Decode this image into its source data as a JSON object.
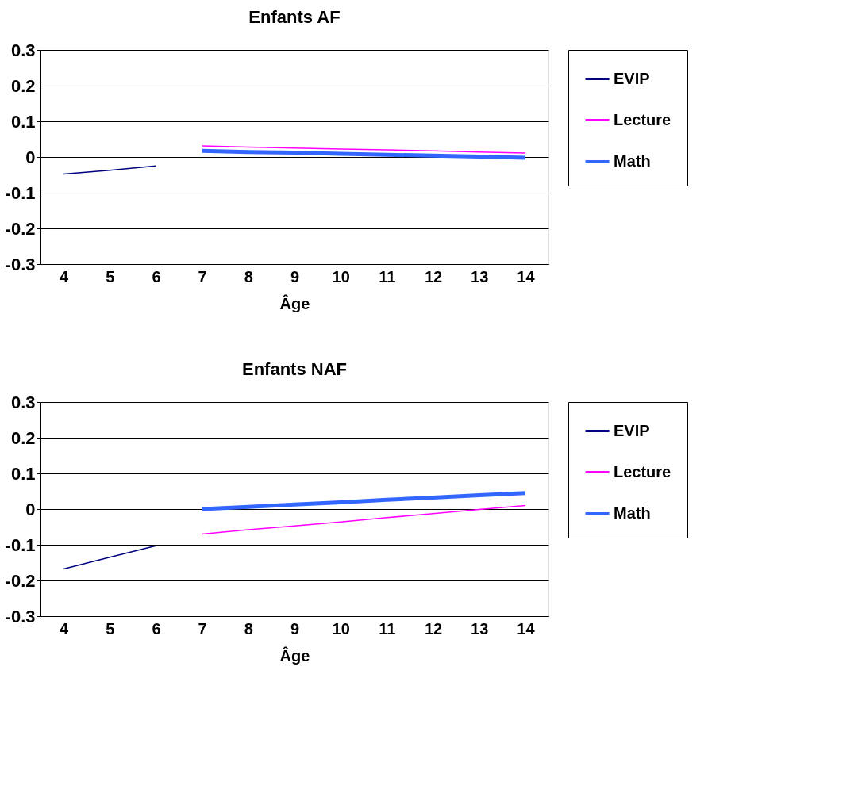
{
  "chart_data": [
    {
      "type": "line",
      "title": "Enfants AF",
      "xlabel": "Âge",
      "categories": [
        "4",
        "5",
        "6",
        "7",
        "8",
        "9",
        "10",
        "11",
        "12",
        "13",
        "14"
      ],
      "ylim": [
        -0.3,
        0.3
      ],
      "yticks": [
        {
          "value": -0.3,
          "label": "-0.3"
        },
        {
          "value": -0.2,
          "label": "-0.2"
        },
        {
          "value": -0.1,
          "label": "-0.1"
        },
        {
          "value": 0,
          "label": "0"
        },
        {
          "value": 0.1,
          "label": "0.1"
        },
        {
          "value": 0.2,
          "label": "0.2"
        },
        {
          "value": 0.3,
          "label": "0.3"
        }
      ],
      "grid": "y",
      "legend": "right",
      "marker": "none",
      "series": [
        {
          "name": "EVIP",
          "color": "#000080",
          "values": [
            -0.048,
            -0.037,
            -0.025,
            null,
            null,
            null,
            null,
            null,
            null,
            null,
            null
          ]
        },
        {
          "name": "Lecture",
          "color": "#ff00ff",
          "values": [
            null,
            null,
            null,
            0.031,
            0.028,
            0.025,
            0.022,
            0.02,
            0.017,
            0.014,
            0.011
          ]
        },
        {
          "name": "Math",
          "color": "#3366ff",
          "values": [
            null,
            null,
            null,
            0.017,
            0.014,
            0.012,
            0.009,
            0.006,
            0.004,
            0.001,
            -0.002
          ]
        }
      ]
    },
    {
      "type": "line",
      "title": "Enfants NAF",
      "xlabel": "Âge",
      "categories": [
        "4",
        "5",
        "6",
        "7",
        "8",
        "9",
        "10",
        "11",
        "12",
        "13",
        "14"
      ],
      "ylim": [
        -0.3,
        0.3
      ],
      "yticks": [
        {
          "value": -0.3,
          "label": "-0.3"
        },
        {
          "value": -0.2,
          "label": "-0.2"
        },
        {
          "value": -0.1,
          "label": "-0.1"
        },
        {
          "value": 0,
          "label": "0"
        },
        {
          "value": 0.1,
          "label": "0.1"
        },
        {
          "value": 0.2,
          "label": "0.2"
        },
        {
          "value": 0.3,
          "label": "0.3"
        }
      ],
      "grid": "y",
      "legend": "right",
      "marker": "none",
      "series": [
        {
          "name": "EVIP",
          "color": "#000080",
          "values": [
            -0.168,
            -0.135,
            -0.103,
            null,
            null,
            null,
            null,
            null,
            null,
            null,
            null
          ]
        },
        {
          "name": "Lecture",
          "color": "#ff00ff",
          "values": [
            null,
            null,
            null,
            -0.07,
            -0.058,
            -0.047,
            -0.036,
            -0.024,
            -0.013,
            -0.001,
            0.01
          ]
        },
        {
          "name": "Math",
          "color": "#3366ff",
          "values": [
            null,
            null,
            null,
            0.0,
            0.006,
            0.013,
            0.019,
            0.026,
            0.032,
            0.039,
            0.045
          ]
        }
      ]
    }
  ]
}
